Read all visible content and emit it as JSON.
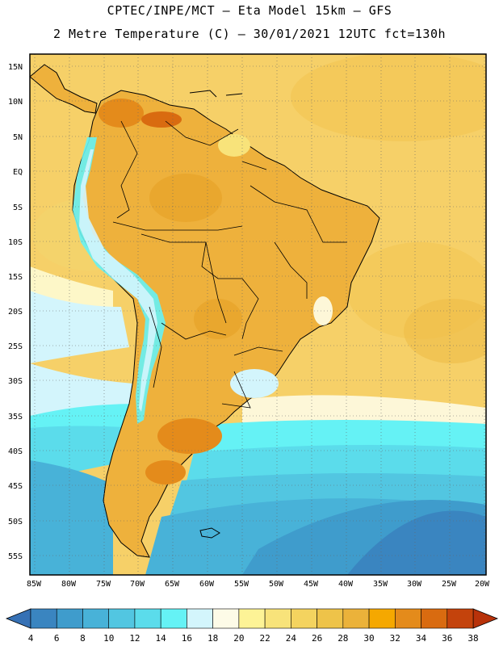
{
  "header": {
    "line1": "CPTEC/INPE/MCT –  Eta Model 15km – GFS",
    "line2": "2 Metre Temperature (C) – 30/01/2021 12UTC fct=130h"
  },
  "map": {
    "lat_labels": [
      "15N",
      "10N",
      "5N",
      "EQ",
      "5S",
      "10S",
      "15S",
      "20S",
      "25S",
      "30S",
      "35S",
      "40S",
      "45S",
      "50S",
      "55S"
    ],
    "lon_labels": [
      "85W",
      "80W",
      "75W",
      "70W",
      "65W",
      "60W",
      "55W",
      "50W",
      "45W",
      "40W",
      "35W",
      "30W",
      "25W",
      "20W"
    ],
    "ocean_color": "#f6d068",
    "land_color": "#eeb13c"
  },
  "colorbar": {
    "labels": [
      "4",
      "6",
      "8",
      "10",
      "12",
      "14",
      "16",
      "18",
      "20",
      "22",
      "24",
      "26",
      "28",
      "30",
      "32",
      "34",
      "36",
      "38"
    ],
    "colors": [
      "#3671b5",
      "#3a85c0",
      "#3f9ccc",
      "#48b2d8",
      "#52c6e1",
      "#5bdceb",
      "#65f2f5",
      "#d3f5fc",
      "#fdfbe7",
      "#fdf396",
      "#f8e37a",
      "#f4d35f",
      "#eec349",
      "#ebb23a",
      "#f5a800",
      "#e48b1b",
      "#d96b10",
      "#c4430c",
      "#b8320a"
    ]
  }
}
